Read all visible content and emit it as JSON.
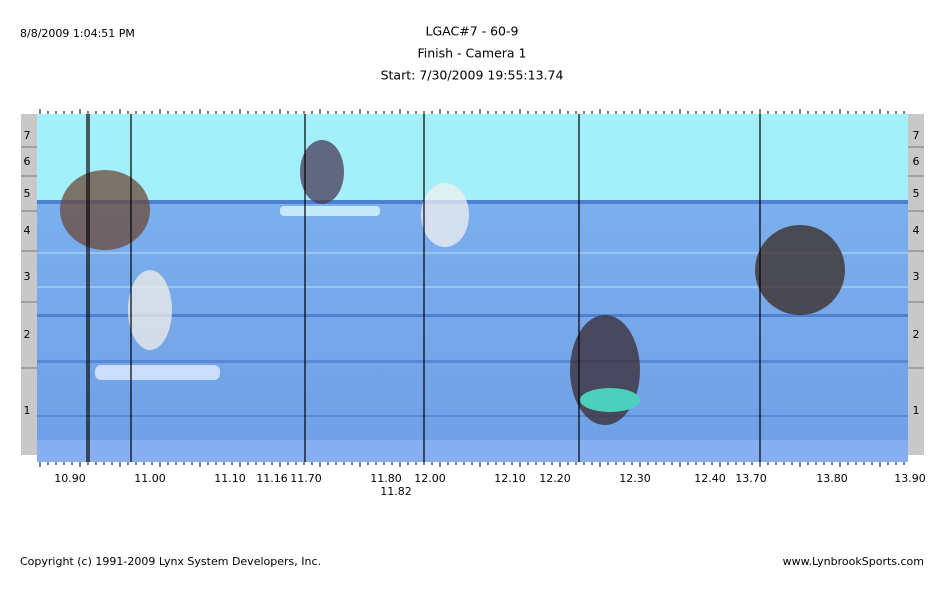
{
  "header": {
    "timestamp": "8/8/2009 1:04:51 PM",
    "event": "LGAC#7 - 60-9",
    "camera": "Finish - Camera 1",
    "start": "Start: 7/30/2009 19:55:13.74"
  },
  "lanes": [
    "7",
    "6",
    "5",
    "4",
    "3",
    "2",
    "1"
  ],
  "times": [
    "10.90",
    "11.00",
    "11.10",
    "11.16",
    "11.70",
    "11.80",
    "11.82",
    "12.00",
    "12.10",
    "12.20",
    "12.30",
    "12.40",
    "13.70",
    "13.80",
    "13.90"
  ],
  "footer": {
    "copyright": "Copyright (c) 1991-2009 Lynx System Developers, Inc.",
    "website": "www.LynbrookSports.com"
  }
}
